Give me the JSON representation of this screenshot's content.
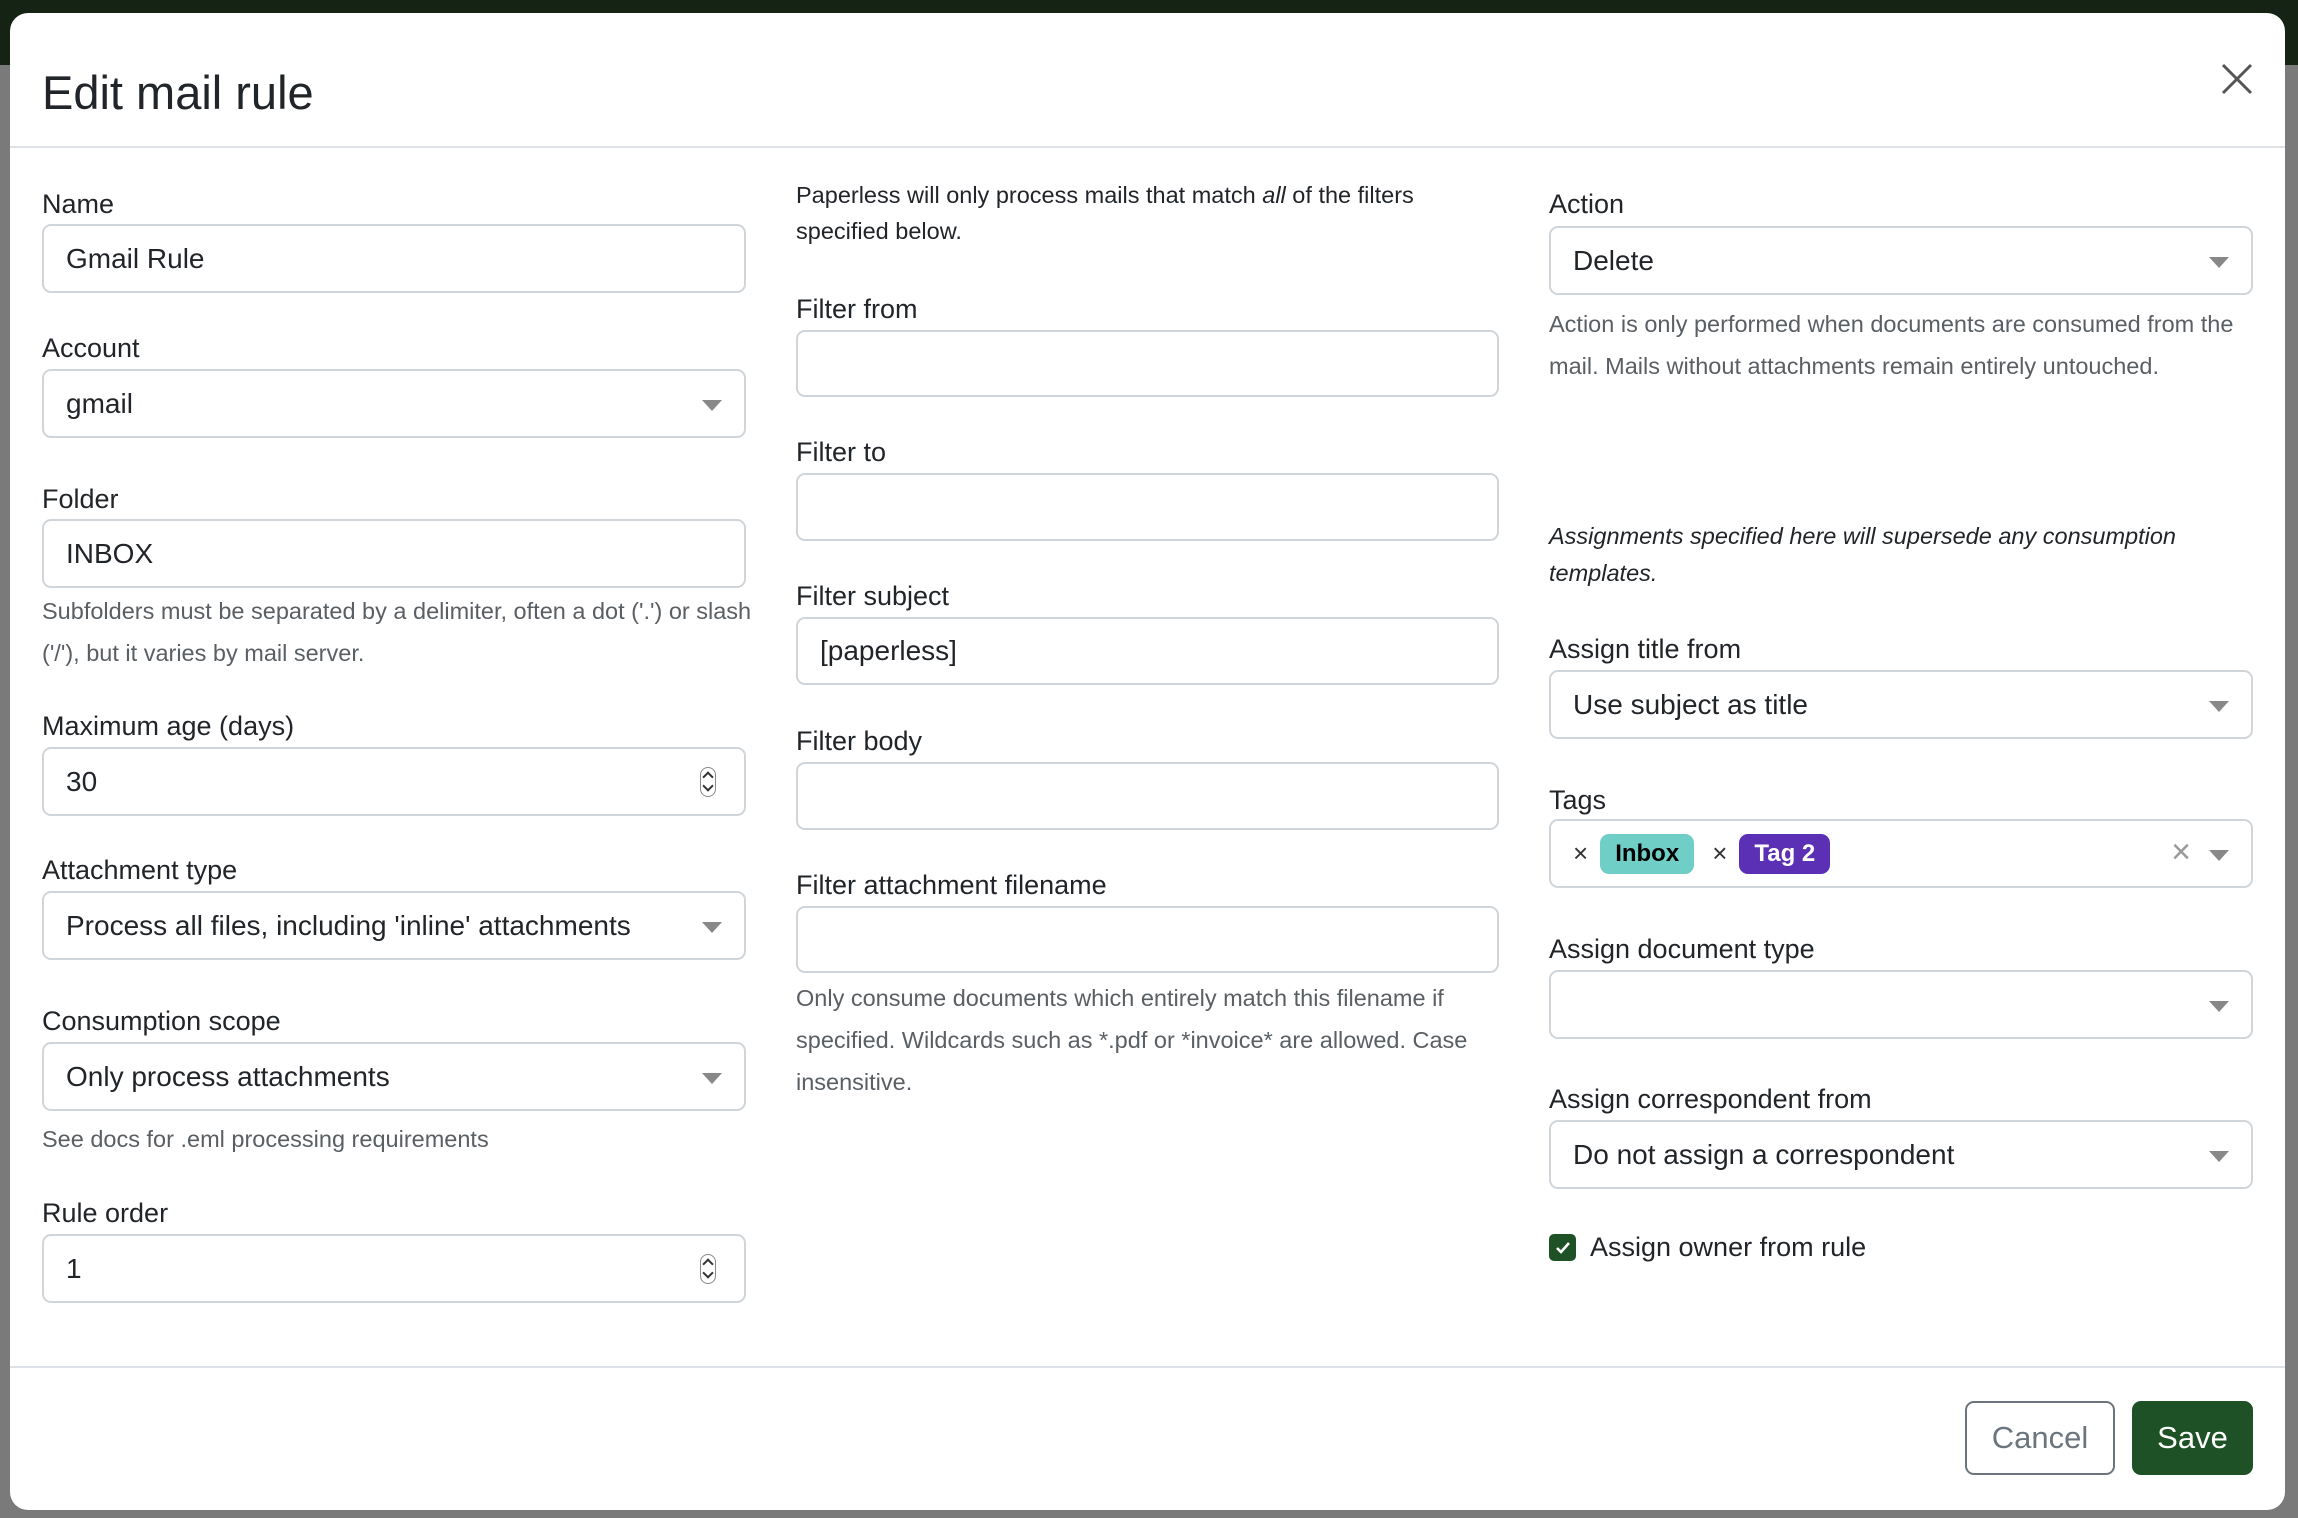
{
  "title": "Edit mail rule",
  "col1": {
    "name_label": "Name",
    "name_value": "Gmail Rule",
    "account_label": "Account",
    "account_value": "gmail",
    "folder_label": "Folder",
    "folder_value": "INBOX",
    "folder_help": "Subfolders must be separated by a delimiter, often a dot ('.') or slash ('/'), but it varies by mail server.",
    "max_age_label": "Maximum age (days)",
    "max_age_value": "30",
    "attachment_type_label": "Attachment type",
    "attachment_type_value": "Process all files, including 'inline' attachments",
    "scope_label": "Consumption scope",
    "scope_value": "Only process attachments",
    "scope_help": "See docs for .eml processing requirements",
    "rule_order_label": "Rule order",
    "rule_order_value": "1"
  },
  "col2": {
    "intro_before": "Paperless will only process mails that match ",
    "intro_em": "all",
    "intro_after": " of the filters specified below.",
    "from_label": "Filter from",
    "from_value": "",
    "to_label": "Filter to",
    "to_value": "",
    "subject_label": "Filter subject",
    "subject_value": "[paperless]",
    "body_label": "Filter body",
    "body_value": "",
    "filename_label": "Filter attachment filename",
    "filename_value": "",
    "filename_help": "Only consume documents which entirely match this filename if specified. Wildcards such as *.pdf or *invoice* are allowed. Case insensitive."
  },
  "col3": {
    "action_label": "Action",
    "action_value": "Delete",
    "action_help": "Action is only performed when documents are consumed from the mail. Mails without attachments remain entirely untouched.",
    "assign_note": "Assignments specified here will supersede any consumption templates.",
    "title_label": "Assign title from",
    "title_value": "Use subject as title",
    "tags_label": "Tags",
    "tags": [
      {
        "label": "Inbox",
        "color": "#6fcfc7"
      },
      {
        "label": "Tag 2",
        "color": "#5b30b5"
      }
    ],
    "doctype_label": "Assign document type",
    "doctype_value": "",
    "corr_label": "Assign correspondent from",
    "corr_value": "Do not assign a correspondent",
    "owner_label": "Assign owner from rule",
    "owner_checked": true
  },
  "footer": {
    "cancel": "Cancel",
    "save": "Save"
  },
  "colors": {
    "primary": "#1f5126",
    "tag_inbox": "#6fcfc7",
    "tag_2": "#5b30b5"
  }
}
